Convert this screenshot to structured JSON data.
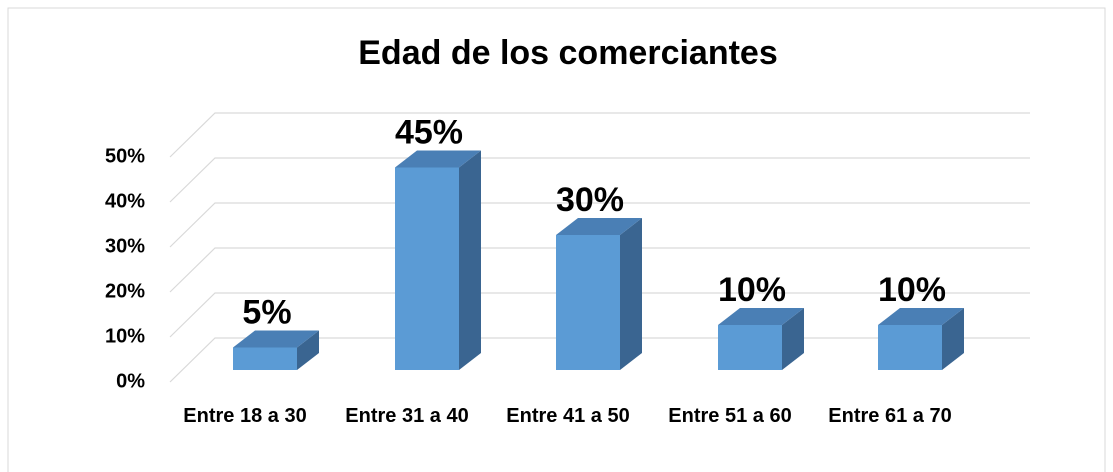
{
  "chart_data": {
    "type": "bar3d",
    "title": "Edad de los comerciantes",
    "categories": [
      "Entre 18 a 30",
      "Entre 31 a 40",
      "Entre 41 a 50",
      "Entre 51 a 60",
      "Entre 61 a 70"
    ],
    "values": [
      5,
      45,
      30,
      10,
      10
    ],
    "value_labels": [
      "5%",
      "45%",
      "30%",
      "10%",
      "10%"
    ],
    "color": "#5b9bd5",
    "ylim": [
      0,
      50
    ],
    "yticks": [
      {
        "value": 0,
        "label": "0%"
      },
      {
        "value": 10,
        "label": "10%"
      },
      {
        "value": 20,
        "label": "20%"
      },
      {
        "value": 30,
        "label": "30%"
      },
      {
        "value": 40,
        "label": "40%"
      },
      {
        "value": 50,
        "label": "50%"
      }
    ],
    "grid": true
  }
}
